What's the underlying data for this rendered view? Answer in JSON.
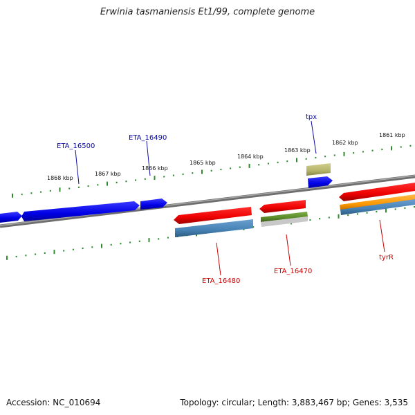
{
  "title": "Erwinia tasmaniensis Et1/99, complete genome",
  "accession_text": "Accession: NC_010694",
  "summary_text": "Topology: circular; Length: 3,883,467 bp; Genes: 3,535",
  "scale_labels": [
    "1868 kbp",
    "1867 kbp",
    "1866 kbp",
    "1865 kbp",
    "1864 kbp",
    "1863 kbp",
    "1862 kbp",
    "1861 kbp"
  ],
  "colors": {
    "backbone": "#808080",
    "ruler": "#2e8b2e",
    "forward_label": "#0a0aa0",
    "reverse_label": "#cc0000",
    "blue_gene": "#0000ee",
    "red_gene": "#ee0000",
    "steel_gene": "#4682b4",
    "olive_gene": "#b5b46a",
    "green_gene": "#5a8a2a",
    "orange_gene": "#ff9900"
  },
  "gene_labels": [
    {
      "name": "ETA_16500",
      "strand": "forward"
    },
    {
      "name": "ETA_16490",
      "strand": "forward"
    },
    {
      "name": "tpx",
      "strand": "forward"
    },
    {
      "name": "ETA_16480",
      "strand": "reverse"
    },
    {
      "name": "ETA_16470",
      "strand": "reverse"
    },
    {
      "name": "tyrR",
      "strand": "reverse"
    }
  ]
}
